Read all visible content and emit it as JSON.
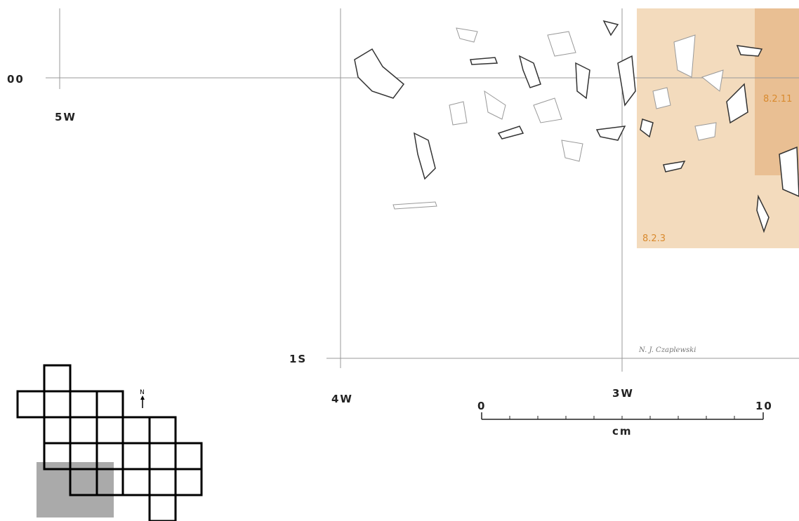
{
  "grid_labels": {
    "row_00": "00",
    "row_1s": "1S",
    "col_5w": "5W",
    "col_4w": "4W",
    "col_3w": "3W"
  },
  "units": {
    "a": "8.2.11",
    "b": "8.2.3"
  },
  "signature": "N. J. Czaplewski",
  "scale": {
    "start": "0",
    "end": "10",
    "unit": "cm"
  },
  "north": "N"
}
